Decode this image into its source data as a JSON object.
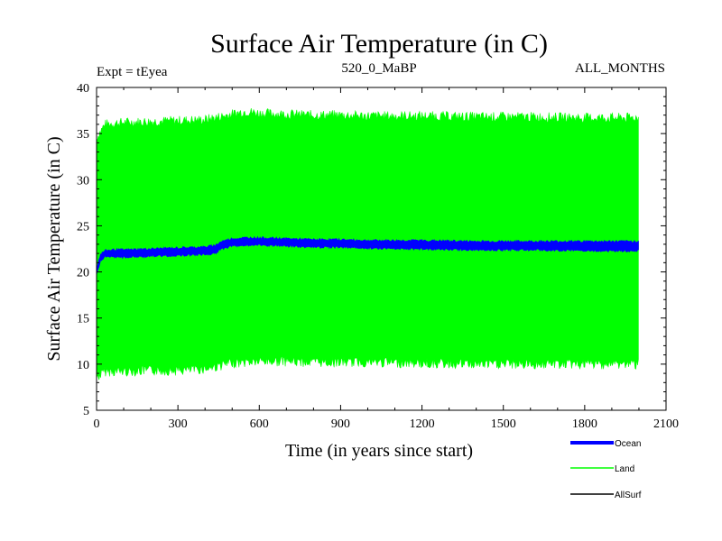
{
  "chart_data": {
    "type": "line",
    "title": "Surface Air Temperature (in C)",
    "subtitle_left": "Expt = tEyea",
    "subtitle_center": "520_0_MaBP",
    "subtitle_right": "ALL_MONTHS",
    "xlabel": "Time (in years since start)",
    "ylabel": "Surface Air Temperature (in C)",
    "xlim": [
      0,
      2100
    ],
    "ylim": [
      5,
      40
    ],
    "xticks": [
      0,
      300,
      600,
      900,
      1200,
      1500,
      1800,
      2100
    ],
    "yticks": [
      5,
      10,
      15,
      20,
      25,
      30,
      35,
      40
    ],
    "grid": false,
    "legend_position": "bottom-right",
    "series": [
      {
        "name": "Land",
        "color": "#00ff00",
        "style": "annual-cycle band",
        "x": [
          0,
          30,
          100,
          200,
          300,
          400,
          450,
          500,
          550,
          600,
          700,
          800,
          900,
          1000,
          1200,
          1400,
          1600,
          1800,
          2000
        ],
        "upper": [
          34.5,
          36.0,
          36.2,
          36.3,
          36.4,
          36.5,
          36.8,
          37.1,
          37.4,
          37.2,
          37.1,
          37.0,
          37.0,
          36.9,
          36.9,
          36.8,
          36.8,
          36.7,
          36.7
        ],
        "lower": [
          8.5,
          9.2,
          9.2,
          9.3,
          9.3,
          9.5,
          9.8,
          10.1,
          10.2,
          10.3,
          10.3,
          10.2,
          10.2,
          10.2,
          10.1,
          10.0,
          10.0,
          10.0,
          10.0
        ]
      },
      {
        "name": "Ocean",
        "color": "#0000ff",
        "style": "band",
        "x": [
          0,
          5,
          15,
          30,
          60,
          100,
          200,
          300,
          400,
          440,
          460,
          500,
          550,
          600,
          700,
          800,
          900,
          1000,
          1200,
          1400,
          1600,
          1800,
          2000
        ],
        "upper": [
          20.3,
          21.0,
          21.9,
          22.3,
          22.4,
          22.4,
          22.5,
          22.6,
          22.7,
          22.9,
          23.3,
          23.6,
          23.7,
          23.7,
          23.6,
          23.5,
          23.5,
          23.4,
          23.4,
          23.3,
          23.3,
          23.3,
          23.3
        ],
        "lower": [
          19.8,
          20.3,
          21.2,
          21.6,
          21.6,
          21.6,
          21.7,
          21.8,
          21.9,
          22.0,
          22.5,
          22.8,
          22.9,
          22.9,
          22.8,
          22.7,
          22.7,
          22.6,
          22.5,
          22.4,
          22.4,
          22.3,
          22.3
        ]
      },
      {
        "name": "AllSurf",
        "color": "#000000",
        "style": "line",
        "x": [],
        "values": []
      }
    ],
    "legend": [
      {
        "name": "Ocean",
        "color": "#0000ff"
      },
      {
        "name": "Land",
        "color": "#00ff00"
      },
      {
        "name": "AllSurf",
        "color": "#000000"
      }
    ]
  }
}
